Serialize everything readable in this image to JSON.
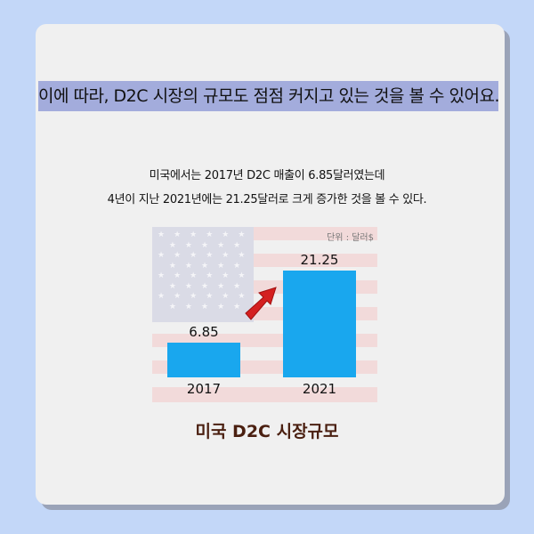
{
  "headline": "이에 따라, D2C 시장의 규모도 점점 커지고 있는 것을 볼 수 있어요.",
  "description": [
    "미국에서는 2017년 D2C 매출이 6.85달러였는데",
    "4년이 지난 2021년에는 21.25달러로 크게 증가한 것을 볼 수 있다."
  ],
  "chart_data": {
    "type": "bar",
    "categories": [
      "2017",
      "2021"
    ],
    "values": [
      6.85,
      21.25
    ],
    "value_labels": [
      "6.85",
      "21.25"
    ],
    "unit_label": "단위 : 달러$",
    "title": "미국 D2C 시장규모",
    "bar_color": "#19a7ee",
    "ylim": [
      0,
      21.25
    ],
    "background": "us-flag",
    "annotation": "red-up-arrow"
  },
  "colors": {
    "background": "#c3d7f8",
    "card": "#f0f0f0",
    "highlight": "#a3acdc",
    "caption": "#4a1f10"
  }
}
